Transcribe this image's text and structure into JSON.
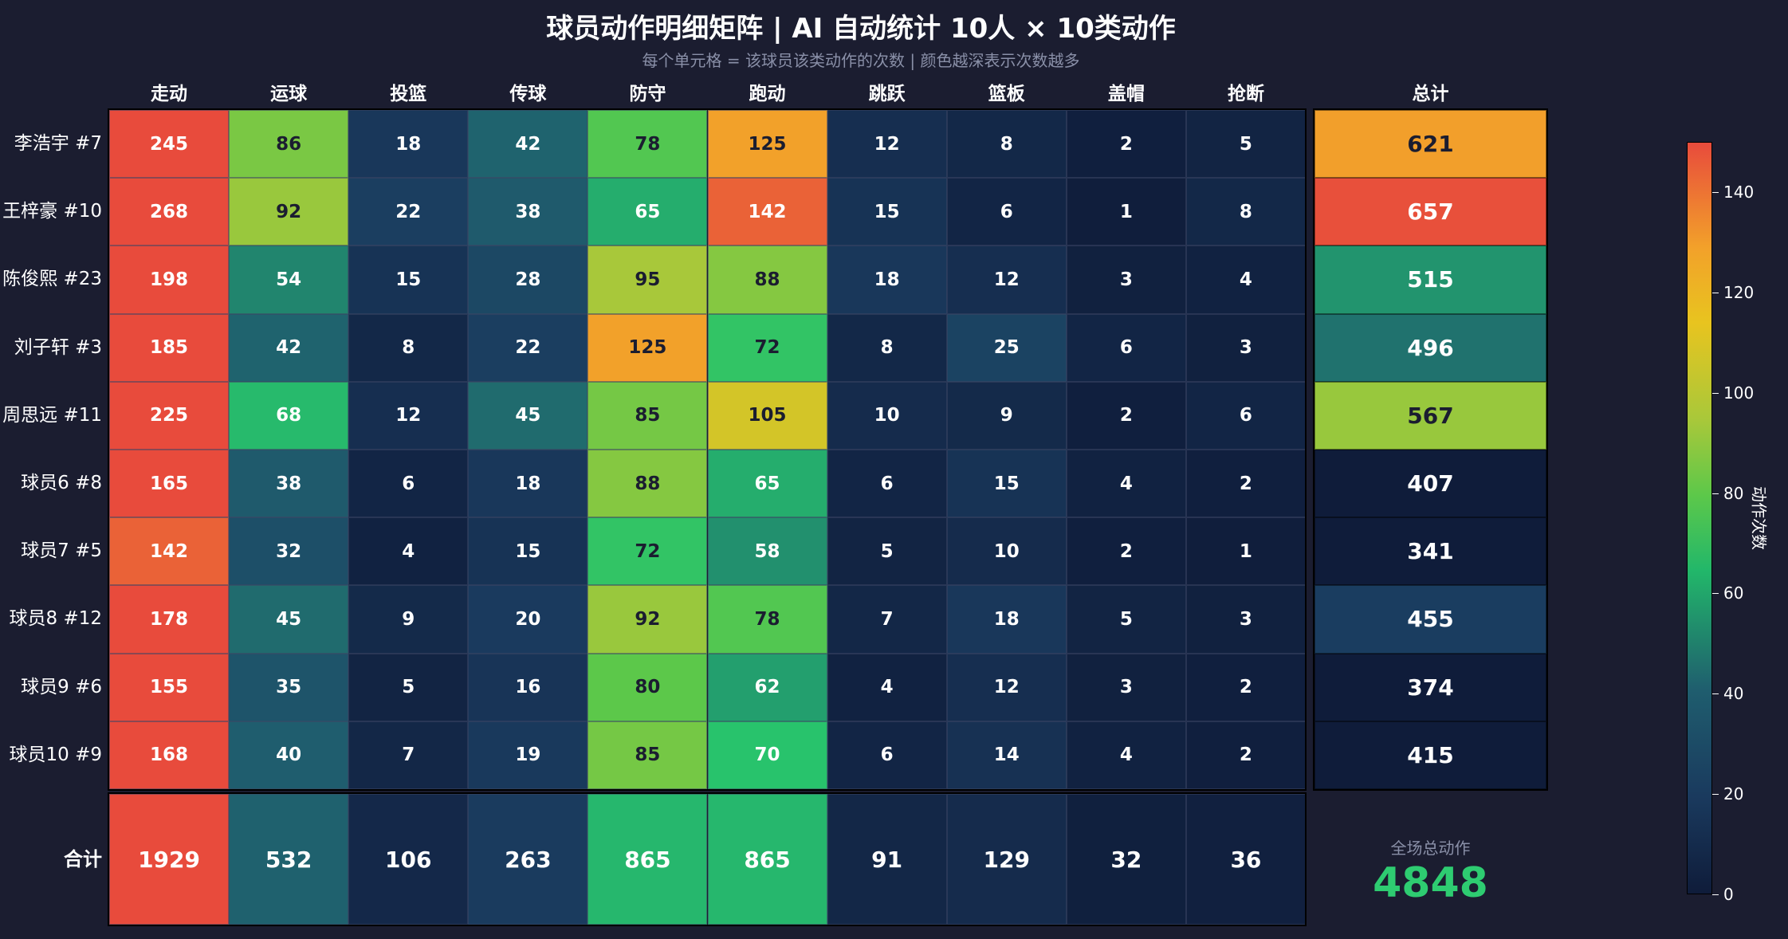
{
  "title": "球员动作明细矩阵 | AI 自动统计 10人 × 10类动作",
  "subtitle": "每个单元格 = 该球员该类动作的次数 | 颜色越深表示次数越多",
  "colorbar": {
    "label": "动作次数",
    "ticks": [
      "0",
      "20",
      "40",
      "60",
      "80",
      "100",
      "120",
      "140"
    ],
    "range": [
      0,
      150
    ]
  },
  "summary": {
    "row_label": "合计",
    "grand_total_label": "全场总动作",
    "grand_total": "4848"
  },
  "chart_data": {
    "type": "heatmap",
    "columns": [
      "走动",
      "运球",
      "投篮",
      "传球",
      "防守",
      "跑动",
      "跳跃",
      "篮板",
      "盖帽",
      "抢断"
    ],
    "total_column": "总计",
    "rows": [
      "李浩宇 #7",
      "王梓豪 #10",
      "陈俊熙 #23",
      "刘子轩 #3",
      "周思远 #11",
      "球员6 #8",
      "球员7 #5",
      "球员8 #12",
      "球员9 #6",
      "球员10 #9"
    ],
    "values": [
      [
        245,
        86,
        18,
        42,
        78,
        125,
        12,
        8,
        2,
        5
      ],
      [
        268,
        92,
        22,
        38,
        65,
        142,
        15,
        6,
        1,
        8
      ],
      [
        198,
        54,
        15,
        28,
        95,
        88,
        18,
        12,
        3,
        4
      ],
      [
        185,
        42,
        8,
        22,
        125,
        72,
        8,
        25,
        6,
        3
      ],
      [
        225,
        68,
        12,
        45,
        85,
        105,
        10,
        9,
        2,
        6
      ],
      [
        165,
        38,
        6,
        18,
        88,
        65,
        6,
        15,
        4,
        2
      ],
      [
        142,
        32,
        4,
        15,
        72,
        58,
        5,
        10,
        2,
        1
      ],
      [
        178,
        45,
        9,
        20,
        92,
        78,
        7,
        18,
        5,
        3
      ],
      [
        155,
        35,
        5,
        16,
        80,
        62,
        4,
        12,
        3,
        2
      ],
      [
        168,
        40,
        7,
        19,
        85,
        70,
        6,
        14,
        4,
        2
      ]
    ],
    "row_totals": [
      621,
      657,
      515,
      496,
      567,
      407,
      341,
      455,
      374,
      415
    ],
    "column_totals": [
      1929,
      532,
      106,
      263,
      865,
      865,
      91,
      129,
      32,
      36
    ]
  }
}
